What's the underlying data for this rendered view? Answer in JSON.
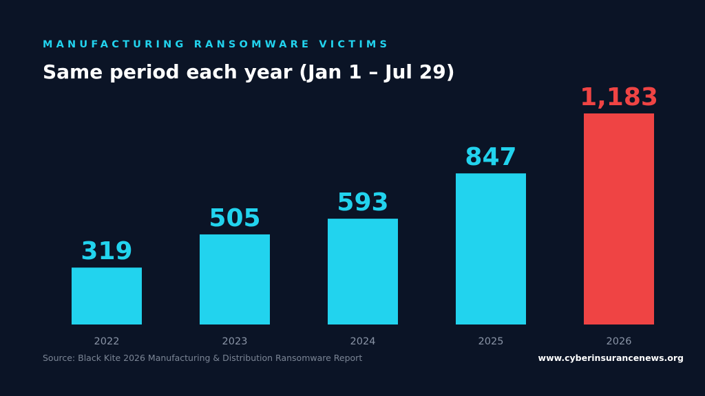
{
  "colors": {
    "background": "#0b1426",
    "accent": "#22d3ee",
    "highlight": "#ef4444",
    "muted": "#8a94a6"
  },
  "header": {
    "eyebrow": "MANUFACTURING RANSOMWARE VICTIMS",
    "title": "Same period each year (Jan 1 – Jul 29)"
  },
  "chart_data": {
    "type": "bar",
    "categories": [
      "2022",
      "2023",
      "2024",
      "2025",
      "2026"
    ],
    "values": [
      319,
      505,
      593,
      847,
      1183
    ],
    "value_labels": [
      "319",
      "505",
      "593",
      "847",
      "1,183"
    ],
    "highlight_category": "2026",
    "title": "Same period each year (Jan 1 – Jul 29)",
    "xlabel": "",
    "ylabel": "",
    "ylim": [
      0,
      1183
    ],
    "grid": false,
    "legend": "none"
  },
  "footer": {
    "source": "Source: Black Kite 2026 Manufacturing & Distribution Ransomware Report",
    "website": "www.cyberinsurancenews.org"
  }
}
